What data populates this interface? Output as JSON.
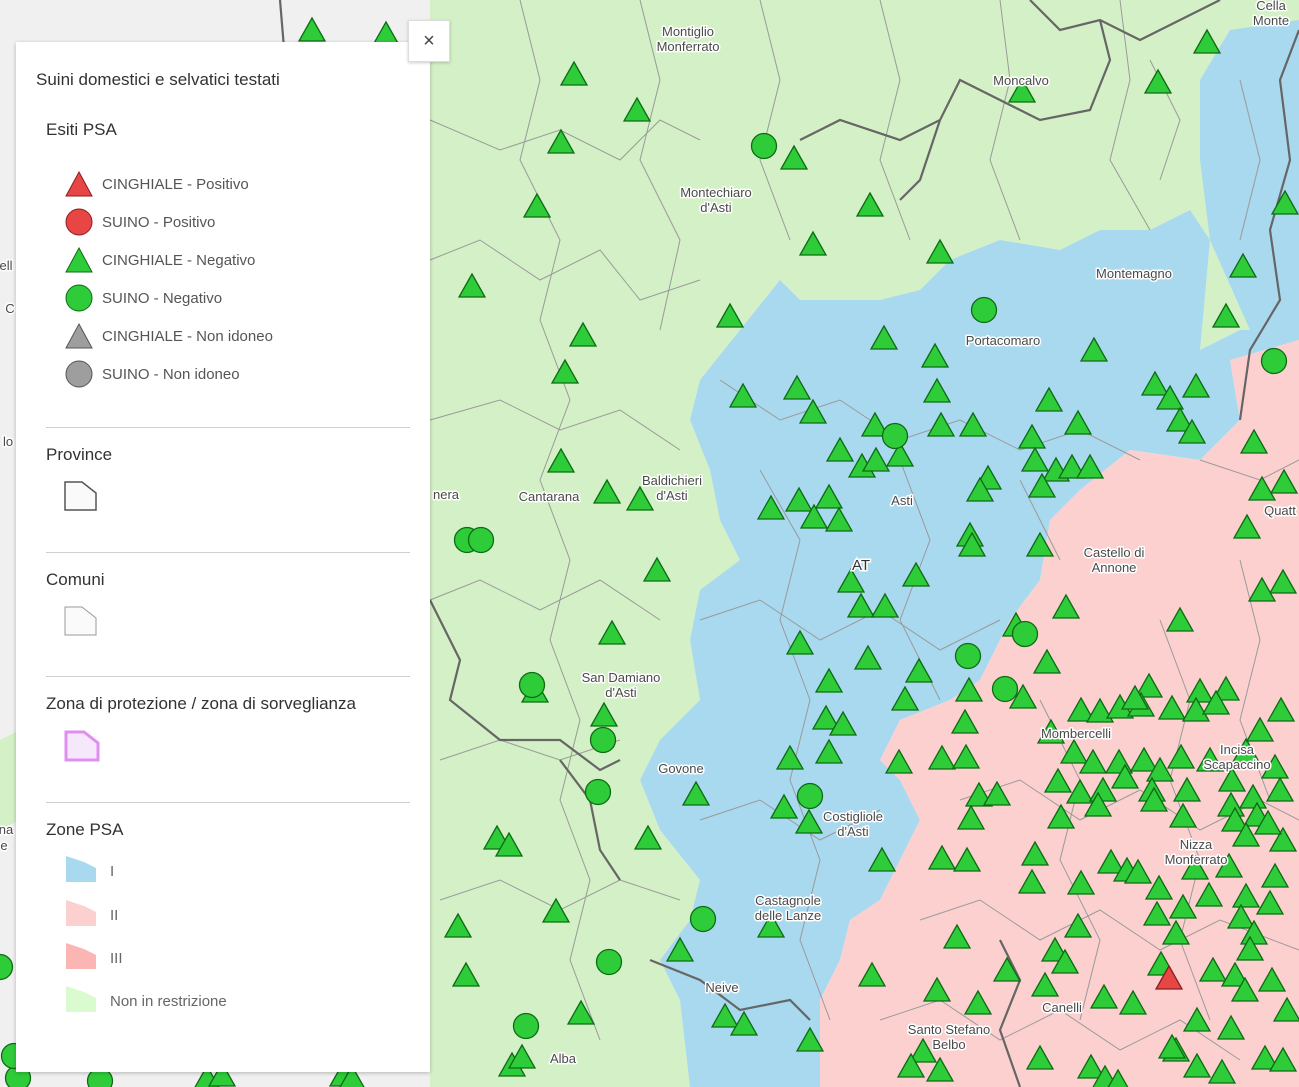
{
  "legend": {
    "title": "Suini domestici e selvatici testati",
    "sections": {
      "esiti": "Esiti PSA",
      "province": "Province",
      "comuni": "Comuni",
      "zona": "Zona di protezione / zona di sorveglianza",
      "zone_psa": "Zone PSA"
    },
    "esiti_items": [
      {
        "label": "CINGHIALE - Positivo",
        "shape": "triangle",
        "color": "#e84545"
      },
      {
        "label": "SUINO - Positivo",
        "shape": "circle",
        "color": "#e84545"
      },
      {
        "label": "CINGHIALE - Negativo",
        "shape": "triangle",
        "color": "#2fcc3a"
      },
      {
        "label": "SUINO - Negativo",
        "shape": "circle",
        "color": "#2fcc3a"
      },
      {
        "label": "CINGHIALE - Non idoneo",
        "shape": "triangle",
        "color": "#9e9e9e"
      },
      {
        "label": "SUINO - Non idoneo",
        "shape": "circle",
        "color": "#9e9e9e"
      }
    ],
    "zone_items": [
      {
        "label": "I",
        "color": "#a9d9ef"
      },
      {
        "label": "II",
        "color": "#fdd0d0"
      },
      {
        "label": "III",
        "color": "#fbb6b4"
      },
      {
        "label": "Non in restrizione",
        "color": "#dafad0"
      }
    ]
  },
  "close_label": "×",
  "map": {
    "colors": {
      "zone_I": "#a9d9ef",
      "zone_II": "#fdd0d0",
      "non_restr": "#d4f0c6",
      "basemap": "#f0f0f0",
      "marker_neg": "#2fcc3a",
      "marker_pos": "#e84545",
      "marker_stroke": "#0d6b14"
    },
    "places": [
      {
        "text": "Montiglio",
        "text2": "Monferrato"
      },
      {
        "text": "Moncalvo"
      },
      {
        "text": "Cella",
        "text2": "Monte"
      },
      {
        "text": "Montechiaro",
        "text2": "d'Asti"
      },
      {
        "text": "Montemagno"
      },
      {
        "text": "Portacomaro"
      },
      {
        "text": "Asti"
      },
      {
        "text": "Baldichieri",
        "text2": "d'Asti"
      },
      {
        "text": "Cantarana"
      },
      {
        "text": "nera"
      },
      {
        "text": "Castello di",
        "text2": "Annone"
      },
      {
        "text": "Quatt"
      },
      {
        "text": "San Damiano",
        "text2": "d'Asti"
      },
      {
        "text": "Mombercelli"
      },
      {
        "text": "Incisa",
        "text2": "Scapaccino"
      },
      {
        "text": "Govone"
      },
      {
        "text": "Costigliole",
        "text2": "d'Asti"
      },
      {
        "text": "Nizza",
        "text2": "Monferrato"
      },
      {
        "text": "Castagnole",
        "text2": "delle Lanze"
      },
      {
        "text": "Neive"
      },
      {
        "text": "Canelli"
      },
      {
        "text": "Santo Stefano",
        "text2": "Belbo"
      },
      {
        "text": "Alba"
      },
      {
        "text": "ell"
      },
      {
        "text": "C"
      },
      {
        "text": "lo"
      },
      {
        "text": "na"
      },
      {
        "text": "e"
      }
    ],
    "province_label": "AT"
  }
}
